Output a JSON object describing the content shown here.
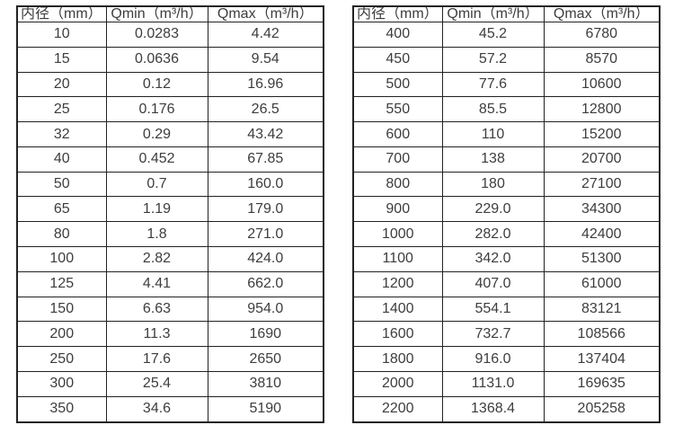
{
  "tables": [
    {
      "title": "flow-table-small-diameters",
      "headers": [
        "内径（mm）",
        "Qmin（m³/h）",
        "Qmax（m³/h）"
      ],
      "rows": [
        [
          "10",
          "0.0283",
          "4.42"
        ],
        [
          "15",
          "0.0636",
          "9.54"
        ],
        [
          "20",
          "0.12",
          "16.96"
        ],
        [
          "25",
          "0.176",
          "26.5"
        ],
        [
          "32",
          "0.29",
          "43.42"
        ],
        [
          "40",
          "0.452",
          "67.85"
        ],
        [
          "50",
          "0.7",
          "160.0"
        ],
        [
          "65",
          "1.19",
          "179.0"
        ],
        [
          "80",
          "1.8",
          "271.0"
        ],
        [
          "100",
          "2.82",
          "424.0"
        ],
        [
          "125",
          "4.41",
          "662.0"
        ],
        [
          "150",
          "6.63",
          "954.0"
        ],
        [
          "200",
          "11.3",
          "1690"
        ],
        [
          "250",
          "17.6",
          "2650"
        ],
        [
          "300",
          "25.4",
          "3810"
        ],
        [
          "350",
          "34.6",
          "5190"
        ]
      ]
    },
    {
      "title": "flow-table-large-diameters",
      "headers": [
        "内径（mm）",
        "Qmin（m³/h）",
        "Qmax（m³/h）"
      ],
      "rows": [
        [
          "400",
          "45.2",
          "6780"
        ],
        [
          "450",
          "57.2",
          "8570"
        ],
        [
          "500",
          "77.6",
          "10600"
        ],
        [
          "550",
          "85.5",
          "12800"
        ],
        [
          "600",
          "110",
          "15200"
        ],
        [
          "700",
          "138",
          "20700"
        ],
        [
          "800",
          "180",
          "27100"
        ],
        [
          "900",
          "229.0",
          "34300"
        ],
        [
          "1000",
          "282.0",
          "42400"
        ],
        [
          "1100",
          "342.0",
          "51300"
        ],
        [
          "1200",
          "407.0",
          "61000"
        ],
        [
          "1400",
          "554.1",
          "83121"
        ],
        [
          "1600",
          "732.7",
          "108566"
        ],
        [
          "1800",
          "916.0",
          "137404"
        ],
        [
          "2000",
          "1131.0",
          "169635"
        ],
        [
          "2200",
          "1368.4",
          "205258"
        ]
      ]
    }
  ],
  "colors": {
    "border": "#222222",
    "text": "#3d3d3d",
    "background": "#ffffff"
  }
}
